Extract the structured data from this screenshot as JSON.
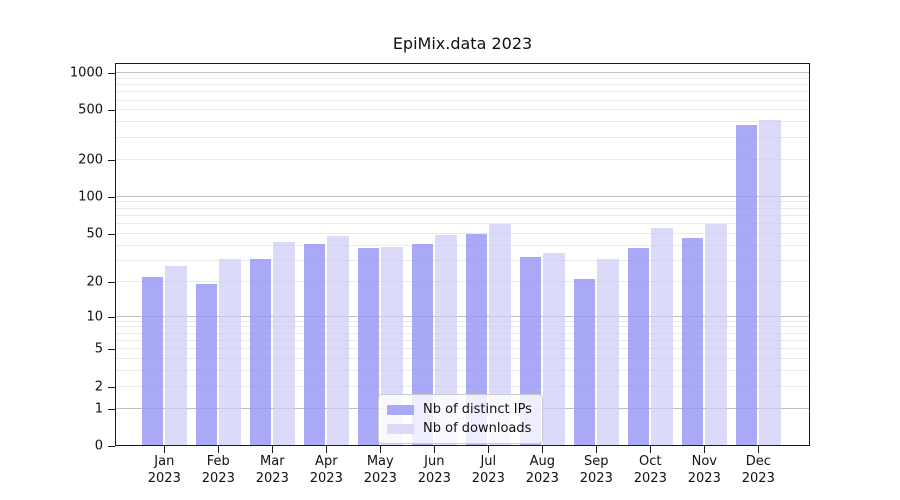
{
  "title": "EpiMix.data 2023",
  "chart_data": {
    "type": "bar",
    "title": "EpiMix.data 2023",
    "x_categories": [
      "Jan 2023",
      "Feb 2023",
      "Mar 2023",
      "Apr 2023",
      "May 2023",
      "Jun 2023",
      "Jul 2023",
      "Aug 2023",
      "Sep 2023",
      "Oct 2023",
      "Nov 2023",
      "Dec 2023"
    ],
    "series": [
      {
        "name": "Nb of distinct IPs",
        "color": "#a9a9f8",
        "fill": "rgba(150,150,246,0.82)",
        "values": [
          22,
          19,
          31,
          41,
          38,
          41,
          50,
          32,
          21,
          38,
          46,
          380
        ]
      },
      {
        "name": "Nb of downloads",
        "color": "#dbdbf9",
        "fill": "rgba(205,205,246,0.72)",
        "values": [
          27,
          31,
          43,
          48,
          39,
          49,
          60,
          35,
          31,
          56,
          60,
          420
        ]
      }
    ],
    "y_axis": {
      "scale": "symlog",
      "note": "tick position proportional to ln(1+value); 0 sits on the x-axis",
      "ticks": [
        0,
        1,
        2,
        5,
        10,
        20,
        50,
        100,
        200,
        500,
        1000
      ],
      "range": [
        0,
        1200
      ]
    },
    "grid": {
      "minor_values": [
        1,
        2,
        3,
        4,
        5,
        6,
        7,
        8,
        9,
        10,
        20,
        30,
        40,
        50,
        60,
        70,
        80,
        90,
        100,
        200,
        300,
        400,
        500,
        600,
        700,
        800,
        900,
        1000
      ],
      "major_at": [
        1,
        10,
        100,
        1000
      ],
      "major_color": "#bfbfbf",
      "minor_color": "#eaeaea"
    },
    "legend_position": "bottom-center",
    "legend_framed": true
  },
  "colors": {
    "background": "#ffffff",
    "axis": "#1a1a1a",
    "text": "#111111",
    "legend_border": "#cccccc"
  }
}
